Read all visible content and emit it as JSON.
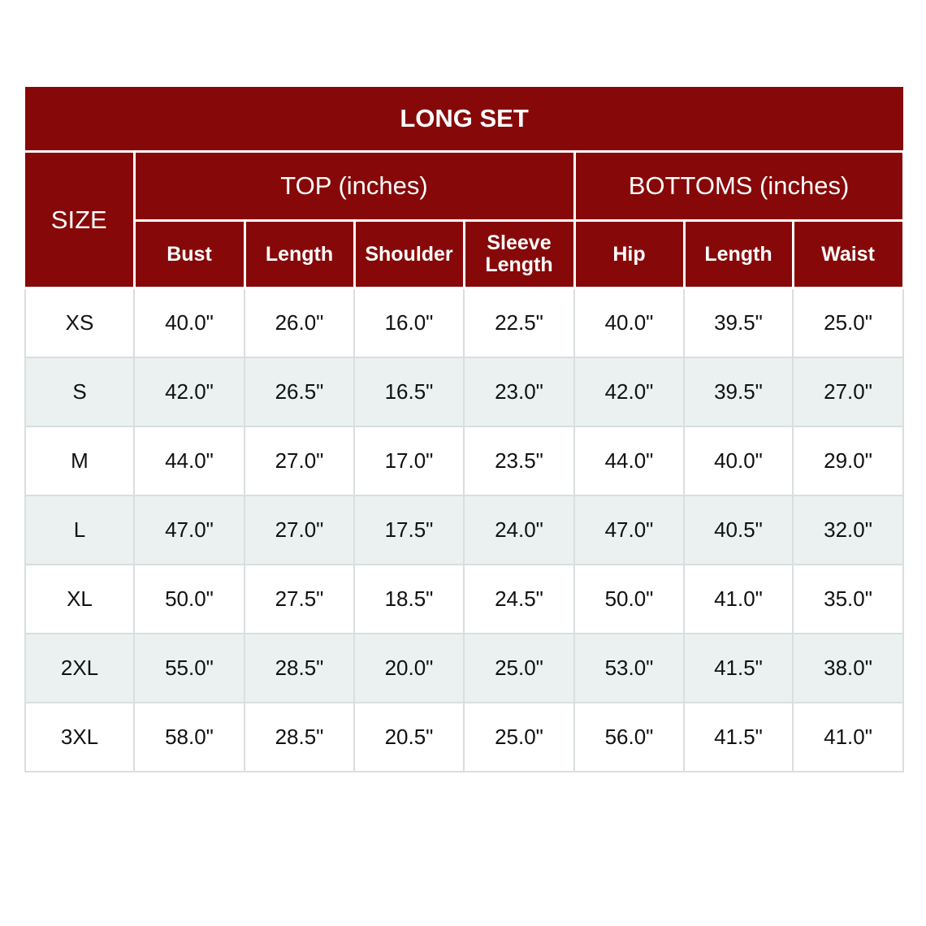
{
  "title": "LONG SET",
  "size_header": "SIZE",
  "groups": {
    "top": "TOP (inches)",
    "bottoms": "BOTTOMS (inches)"
  },
  "columns": [
    "Bust",
    "Length",
    "Shoulder",
    "Sleeve Length",
    "Hip",
    "Length",
    "Waist"
  ],
  "rows": [
    {
      "size": "XS",
      "values": [
        "40.0\"",
        "26.0\"",
        "16.0\"",
        "22.5\"",
        "40.0\"",
        "39.5\"",
        "25.0\""
      ]
    },
    {
      "size": "S",
      "values": [
        "42.0\"",
        "26.5\"",
        "16.5\"",
        "23.0\"",
        "42.0\"",
        "39.5\"",
        "27.0\""
      ]
    },
    {
      "size": "M",
      "values": [
        "44.0\"",
        "27.0\"",
        "17.0\"",
        "23.5\"",
        "44.0\"",
        "40.0\"",
        "29.0\""
      ]
    },
    {
      "size": "L",
      "values": [
        "47.0\"",
        "27.0\"",
        "17.5\"",
        "24.0\"",
        "47.0\"",
        "40.5\"",
        "32.0\""
      ]
    },
    {
      "size": "XL",
      "values": [
        "50.0\"",
        "27.5\"",
        "18.5\"",
        "24.5\"",
        "50.0\"",
        "41.0\"",
        "35.0\""
      ]
    },
    {
      "size": "2XL",
      "values": [
        "55.0\"",
        "28.5\"",
        "20.0\"",
        "25.0\"",
        "53.0\"",
        "41.5\"",
        "38.0\""
      ]
    },
    {
      "size": "3XL",
      "values": [
        "58.0\"",
        "28.5\"",
        "20.5\"",
        "25.0\"",
        "56.0\"",
        "41.5\"",
        "41.0\""
      ]
    }
  ],
  "colors": {
    "header_bg": "#870808",
    "header_text": "#ffffff",
    "stripe": "#ebf1f1"
  }
}
